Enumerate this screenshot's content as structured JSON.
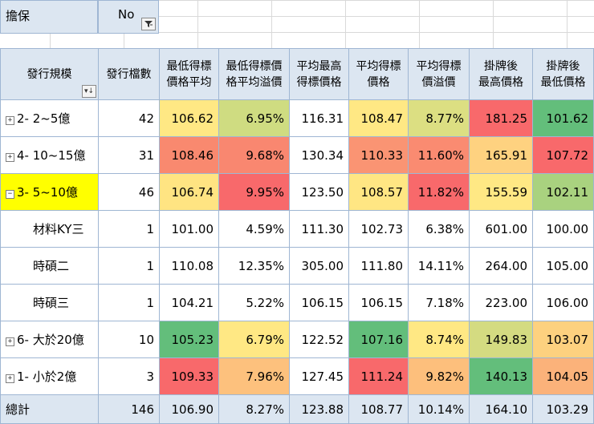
{
  "filter": {
    "label": "擔保",
    "value": "No"
  },
  "headers": {
    "row_label": "發行規模",
    "count": "發行檔數",
    "c1": [
      "最低得標",
      "價格平均"
    ],
    "c2": [
      "最低得標價",
      "格平均溢價"
    ],
    "c3": [
      "平均最高",
      "得標價格"
    ],
    "c4": [
      "平均得標",
      "價格"
    ],
    "c5": [
      "平均得標",
      "價溢價"
    ],
    "c6": [
      "掛牌後",
      "最高價格"
    ],
    "c7": [
      "掛牌後",
      "最低價格"
    ]
  },
  "rows": [
    {
      "toggle": "⊞",
      "label": "2- 2~5億",
      "count": "42",
      "c1": "106.62",
      "c2": "6.95%",
      "c3": "116.31",
      "c4": "108.47",
      "c5": "8.77%",
      "c6": "181.25",
      "c7": "101.62"
    },
    {
      "toggle": "⊞",
      "label": "4- 10~15億",
      "count": "31",
      "c1": "108.46",
      "c2": "9.68%",
      "c3": "130.34",
      "c4": "110.33",
      "c5": "11.60%",
      "c6": "165.91",
      "c7": "107.72"
    },
    {
      "toggle": "⊟",
      "label": "3- 5~10億",
      "count": "46",
      "c1": "106.74",
      "c2": "9.95%",
      "c3": "123.50",
      "c4": "108.57",
      "c5": "11.82%",
      "c6": "155.59",
      "c7": "102.11"
    },
    {
      "label": "材料KY三",
      "count": "1",
      "c1": "101.00",
      "c2": "4.59%",
      "c3": "111.30",
      "c4": "102.73",
      "c5": "6.38%",
      "c6": "601.00",
      "c7": "100.00"
    },
    {
      "label": "時碩二",
      "count": "1",
      "c1": "110.08",
      "c2": "12.35%",
      "c3": "305.00",
      "c4": "111.80",
      "c5": "14.11%",
      "c6": "264.00",
      "c7": "105.00"
    },
    {
      "label": "時碩三",
      "count": "1",
      "c1": "104.21",
      "c2": "5.22%",
      "c3": "106.15",
      "c4": "106.15",
      "c5": "7.18%",
      "c6": "223.00",
      "c7": "106.00"
    },
    {
      "toggle": "⊞",
      "label": "6- 大於20億",
      "count": "10",
      "c1": "105.23",
      "c2": "6.79%",
      "c3": "122.52",
      "c4": "107.16",
      "c5": "8.74%",
      "c6": "149.83",
      "c7": "103.07"
    },
    {
      "toggle": "⊞",
      "label": "1- 小於2億",
      "count": "3",
      "c1": "109.33",
      "c2": "7.96%",
      "c3": "127.45",
      "c4": "111.24",
      "c5": "9.82%",
      "c6": "140.13",
      "c7": "104.05"
    }
  ],
  "total": {
    "label": "總計",
    "count": "146",
    "c1": "106.90",
    "c2": "8.27%",
    "c3": "123.88",
    "c4": "108.77",
    "c5": "10.14%",
    "c6": "164.10",
    "c7": "103.29"
  },
  "colors": {
    "header_bg": "#dce6f1",
    "selected": "#ffff00",
    "scale_green": "#63be7b",
    "scale_yellow": "#ffe884",
    "scale_red": "#f8696b"
  },
  "cell_colors": [
    {
      "c1": "#ffe884",
      "c2": "#cfdc81",
      "c4": "#ffe884",
      "c5": "#dcdf82",
      "c6": "#f8696b",
      "c7": "#63be7b"
    },
    {
      "c1": "#f9896f",
      "c2": "#f98770",
      "c4": "#fa9473",
      "c5": "#fa8b71",
      "c6": "#fed280",
      "c7": "#f8696b"
    },
    {
      "c1": "#ffe482",
      "c2": "#f8696b",
      "c4": "#ffe683",
      "c5": "#f8696b",
      "c6": "#ffe884",
      "c7": "#a9d27f"
    },
    {},
    {},
    {},
    {
      "c1": "#63be7b",
      "c2": "#ffe884",
      "c4": "#63be7b",
      "c5": "#ffe884",
      "c6": "#d4db81",
      "c7": "#fdd17f"
    },
    {
      "c1": "#f8696b",
      "c2": "#fdc17d",
      "c4": "#f8696b",
      "c5": "#fdbf7c",
      "c6": "#63be7b",
      "c7": "#fbb27a"
    }
  ]
}
